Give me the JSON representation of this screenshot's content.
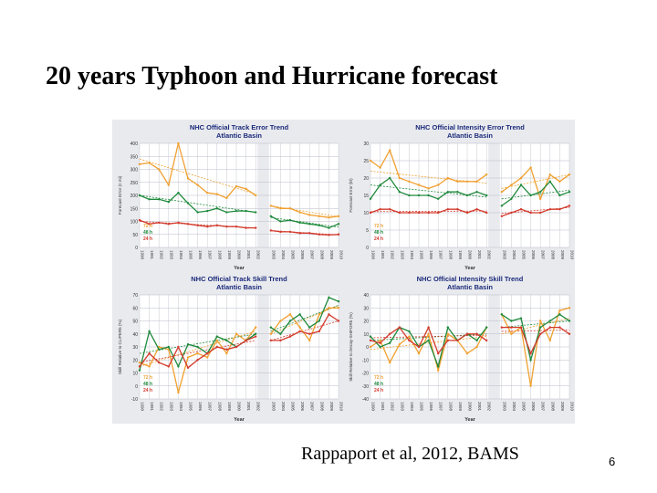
{
  "slide": {
    "title": "20 years Typhoon and Hurricane forecast",
    "citation": "Rappaport et al, 2012, BAMS",
    "page_number": "6"
  },
  "colors": {
    "h24": "#d23a2c",
    "h48": "#1f8a3c",
    "h72": "#f0a030",
    "grid": "#b8bcc8",
    "title": "#1a2a7a",
    "panel_bg": "#ffffff"
  },
  "years": [
    "1990",
    "1991",
    "1992",
    "1993",
    "1994",
    "1995",
    "1996",
    "1997",
    "1998",
    "1999",
    "2000",
    "2001",
    "2002",
    "2003",
    "2004",
    "2005",
    "2006",
    "2007",
    "2008",
    "2009",
    "2010"
  ],
  "chart_data": [
    {
      "type": "line",
      "title": "NHC Official Track Error Trend",
      "subtitle": "Atlantic Basin",
      "xlabel": "Year",
      "ylabel": "Forecast Error (n mi)",
      "ylim": [
        0,
        400
      ],
      "yticks": [
        0,
        50,
        100,
        150,
        200,
        250,
        300,
        350,
        400
      ],
      "break_after": "2002",
      "legend": [
        {
          "key": "h72",
          "label": "72 h"
        },
        {
          "key": "h48",
          "label": "48 h"
        },
        {
          "key": "h24",
          "label": "24 h"
        }
      ],
      "series": [
        {
          "name": "72 h",
          "key": "h72",
          "values": [
            320,
            325,
            300,
            240,
            400,
            265,
            240,
            210,
            205,
            190,
            235,
            225,
            200,
            160,
            150,
            150,
            135,
            125,
            120,
            115,
            120
          ]
        },
        {
          "name": "48 h",
          "key": "h48",
          "values": [
            200,
            185,
            185,
            175,
            210,
            170,
            135,
            140,
            150,
            135,
            140,
            140,
            135,
            120,
            100,
            105,
            95,
            90,
            85,
            75,
            90
          ]
        },
        {
          "name": "24 h",
          "key": "h24",
          "values": [
            105,
            90,
            95,
            90,
            95,
            90,
            85,
            80,
            85,
            80,
            80,
            75,
            75,
            65,
            60,
            60,
            55,
            55,
            50,
            48,
            50
          ]
        }
      ],
      "trends": [
        {
          "key": "h72",
          "segments": [
            [
              340,
              205
            ],
            [
              160,
              118
            ]
          ]
        },
        {
          "key": "h48",
          "segments": [
            [
              200,
              135
            ],
            [
              115,
              78
            ]
          ]
        },
        {
          "key": "h24",
          "segments": [
            [
              100,
              75
            ],
            [
              65,
              48
            ]
          ]
        }
      ]
    },
    {
      "type": "line",
      "title": "NHC Official Intensity Error Trend",
      "subtitle": "Atlantic Basin",
      "xlabel": "Year",
      "ylabel": "Forecast Error (kt)",
      "ylim": [
        0,
        30
      ],
      "yticks": [
        0,
        5,
        10,
        15,
        20,
        25,
        30
      ],
      "break_after": "2002",
      "legend": [
        {
          "key": "h72",
          "label": "72 h"
        },
        {
          "key": "h48",
          "label": "48 h"
        },
        {
          "key": "h24",
          "label": "24 h"
        }
      ],
      "series": [
        {
          "name": "72 h",
          "key": "h72",
          "values": [
            25,
            23,
            28,
            20,
            19,
            18,
            17,
            18,
            20,
            19,
            19,
            19,
            21,
            16,
            18,
            20,
            23,
            14,
            21,
            19,
            21
          ]
        },
        {
          "name": "48 h",
          "key": "h48",
          "values": [
            14,
            18,
            20,
            16,
            15,
            15,
            15,
            14,
            16,
            16,
            15,
            16,
            15,
            12,
            14,
            18,
            15,
            16,
            19,
            15,
            16
          ]
        },
        {
          "name": "24 h",
          "key": "h24",
          "values": [
            10,
            11,
            11,
            10,
            10,
            10,
            10,
            10,
            11,
            11,
            10,
            11,
            10,
            9,
            10,
            11,
            10,
            10,
            11,
            11,
            12
          ]
        }
      ],
      "trends": [
        {
          "key": "h72",
          "segments": [
            [
              22,
              18.5
            ],
            [
              17,
              21
            ]
          ]
        },
        {
          "key": "h48",
          "segments": [
            [
              18,
              14.5
            ],
            [
              14,
              16.5
            ]
          ]
        },
        {
          "key": "h24",
          "segments": [
            [
              10.3,
              10.5
            ],
            [
              9.8,
              11.5
            ]
          ]
        }
      ]
    },
    {
      "type": "line",
      "title": "NHC Official Track Skill Trend",
      "subtitle": "Atlantic Basin",
      "xlabel": "Year",
      "ylabel": "Skill Relative to CLIPER5 (%)",
      "ylim": [
        -10,
        70
      ],
      "yticks": [
        -10,
        0,
        10,
        20,
        30,
        40,
        50,
        60,
        70
      ],
      "break_after": "2002",
      "legend": [
        {
          "key": "h72",
          "label": "72 h"
        },
        {
          "key": "h48",
          "label": "48 h"
        },
        {
          "key": "h24",
          "label": "24 h"
        }
      ],
      "series": [
        {
          "name": "72 h",
          "key": "h72",
          "values": [
            18,
            15,
            30,
            28,
            -5,
            22,
            25,
            22,
            35,
            25,
            40,
            35,
            45,
            40,
            50,
            55,
            45,
            35,
            55,
            60,
            60
          ]
        },
        {
          "name": "48 h",
          "key": "h48",
          "values": [
            12,
            42,
            28,
            30,
            15,
            32,
            30,
            25,
            38,
            35,
            30,
            35,
            40,
            45,
            40,
            50,
            55,
            45,
            50,
            68,
            65
          ]
        },
        {
          "name": "24 h",
          "key": "h24",
          "values": [
            15,
            25,
            18,
            15,
            30,
            14,
            20,
            25,
            30,
            28,
            30,
            35,
            38,
            35,
            35,
            38,
            42,
            40,
            42,
            55,
            50
          ]
        }
      ],
      "trends": [
        {
          "key": "h72",
          "segments": [
            [
              15,
              42
            ],
            [
              40,
              62
            ]
          ]
        },
        {
          "key": "h48",
          "segments": [
            [
              25,
              40
            ],
            [
              42,
              62
            ]
          ]
        },
        {
          "key": "h24",
          "segments": [
            [
              18,
              35
            ],
            [
              35,
              50
            ]
          ]
        }
      ]
    },
    {
      "type": "line",
      "title": "NHC Official Intensity Skill Trend",
      "subtitle": "Atlantic Basin",
      "xlabel": "Year",
      "ylabel": "Skill Relative to Decay-SHIFOR5 (%)",
      "ylim": [
        -40,
        40
      ],
      "yticks": [
        -40,
        -30,
        -20,
        -10,
        0,
        10,
        20,
        30,
        40
      ],
      "break_after": "2002",
      "legend": [
        {
          "key": "h72",
          "label": "72 h"
        },
        {
          "key": "h48",
          "label": "48 h"
        },
        {
          "key": "h24",
          "label": "24 h"
        }
      ],
      "series": [
        {
          "name": "72 h",
          "key": "h72",
          "values": [
            0,
            5,
            -12,
            2,
            8,
            -5,
            10,
            -18,
            10,
            5,
            -5,
            0,
            15,
            25,
            10,
            15,
            -30,
            20,
            5,
            28,
            30
          ]
        },
        {
          "name": "48 h",
          "key": "h48",
          "values": [
            8,
            0,
            3,
            15,
            12,
            0,
            5,
            -15,
            15,
            5,
            10,
            5,
            15,
            25,
            20,
            22,
            -10,
            15,
            20,
            25,
            20
          ]
        },
        {
          "name": "24 h",
          "key": "h24",
          "values": [
            5,
            3,
            10,
            15,
            5,
            0,
            15,
            -5,
            5,
            5,
            10,
            10,
            5,
            15,
            15,
            15,
            -5,
            10,
            15,
            15,
            10
          ]
        }
      ],
      "trends": [
        {
          "key": "h72",
          "segments": [
            [
              -2,
              8
            ],
            [
              10,
              22
            ]
          ]
        },
        {
          "key": "h48",
          "segments": [
            [
              5,
              10
            ],
            [
              15,
              20
            ]
          ]
        },
        {
          "key": "h24",
          "segments": [
            [
              7,
              9
            ],
            [
              12,
              13
            ]
          ]
        }
      ]
    }
  ]
}
